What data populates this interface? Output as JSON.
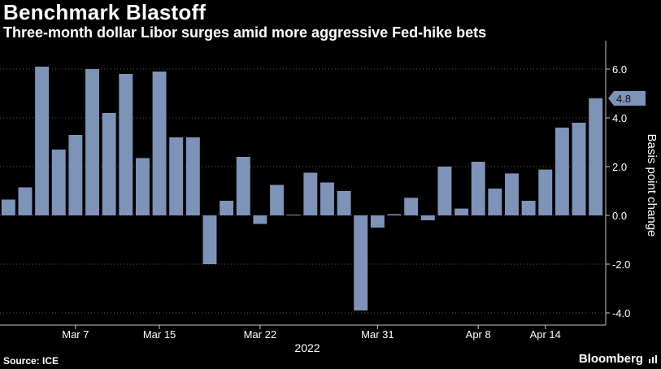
{
  "title": "Benchmark Blastoff",
  "subtitle": "Three-month dollar Libor surges amid more aggressive Fed-hike bets",
  "source": "Source: ICE",
  "brand": "Bloomberg",
  "colors": {
    "background": "#000000",
    "bar": "#7e93b8",
    "text": "#ffffff",
    "axis": "#c8c8c8"
  },
  "chart_data": {
    "type": "bar",
    "ylabel": "Basis point change",
    "xlabel": "2022",
    "ylim": [
      -4.5,
      7
    ],
    "yticks": [
      -4.0,
      -2.0,
      0.0,
      2.0,
      4.0,
      6.0
    ],
    "ytick_labels": [
      "-4.0",
      "-2.0",
      "0.0",
      "2.0",
      "4.0",
      "6.0"
    ],
    "xtick_labels": [
      "Mar 7",
      "Mar 15",
      "Mar 22",
      "Mar 31",
      "Apr 8",
      "Apr 14"
    ],
    "xtick_positions": [
      4,
      9,
      15,
      22,
      28,
      32
    ],
    "last_value_label": "4.8",
    "grid": true,
    "values": [
      0.65,
      1.15,
      6.1,
      2.7,
      3.3,
      6.0,
      4.2,
      5.8,
      2.35,
      5.9,
      3.2,
      3.2,
      -2.0,
      0.6,
      2.4,
      -0.35,
      1.25,
      0.03,
      1.75,
      1.35,
      1.0,
      -3.9,
      -0.5,
      0.05,
      0.72,
      -0.2,
      2.0,
      0.28,
      2.2,
      1.1,
      1.72,
      0.6,
      1.88,
      3.6,
      3.8,
      4.8
    ]
  }
}
